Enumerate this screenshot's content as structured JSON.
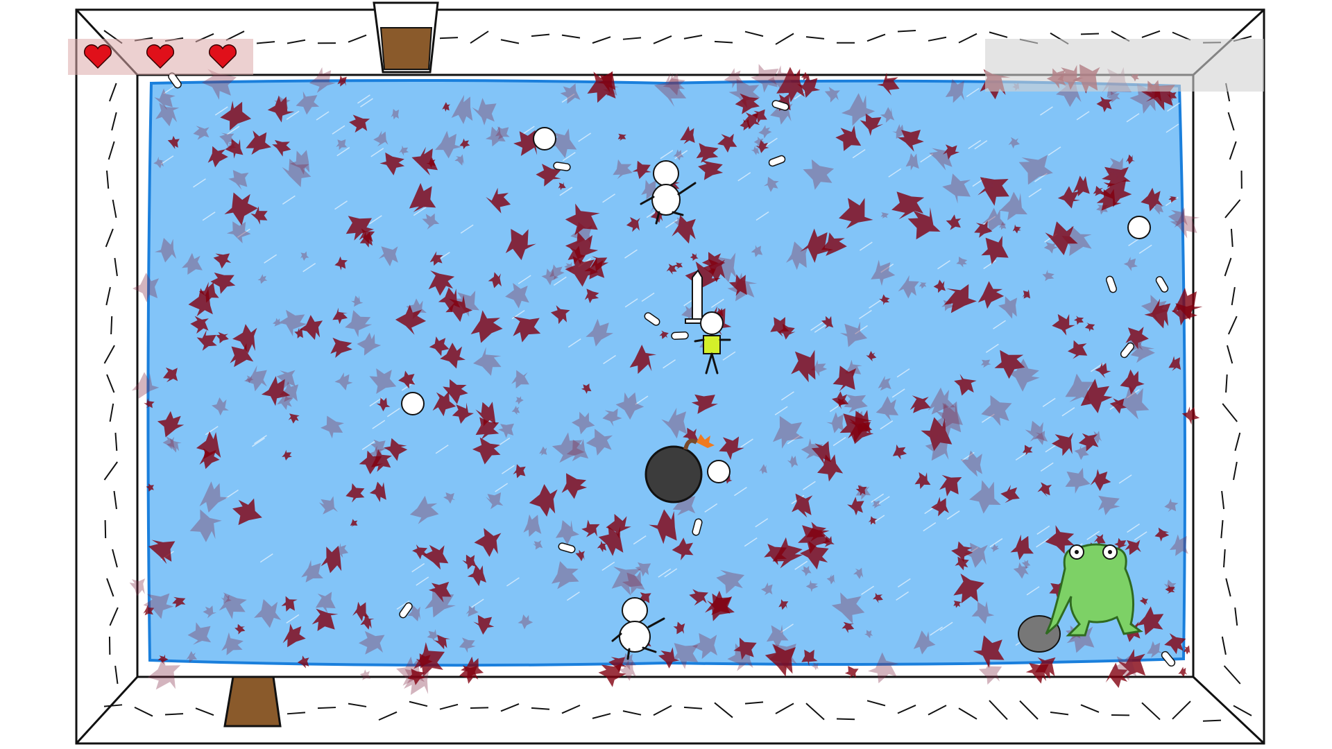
{
  "hud": {
    "hearts": 3
  }
}
